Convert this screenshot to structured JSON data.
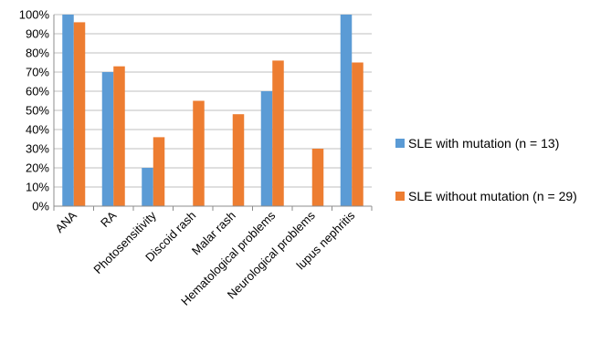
{
  "chart_data": {
    "type": "bar",
    "categories": [
      "ANA",
      "RA",
      "Photosensitivity",
      "Discoid rash",
      "Malar rash",
      "Hematological problems",
      "Neurological problems",
      "lupus nephritis"
    ],
    "series": [
      {
        "name": "SLE with mutation (n = 13)",
        "color": "#5b9bd5",
        "values": [
          100,
          70,
          20,
          0,
          0,
          60,
          0,
          100
        ]
      },
      {
        "name": "SLE without mutation (n = 29)",
        "color": "#ed7d31",
        "values": [
          96,
          73,
          36,
          55,
          48,
          76,
          30,
          75
        ]
      }
    ],
    "yticks": [
      "0%",
      "10%",
      "20%",
      "30%",
      "40%",
      "50%",
      "60%",
      "70%",
      "80%",
      "90%",
      "100%"
    ],
    "ylim": [
      0,
      100
    ],
    "grid": true,
    "legend_position": "right"
  }
}
